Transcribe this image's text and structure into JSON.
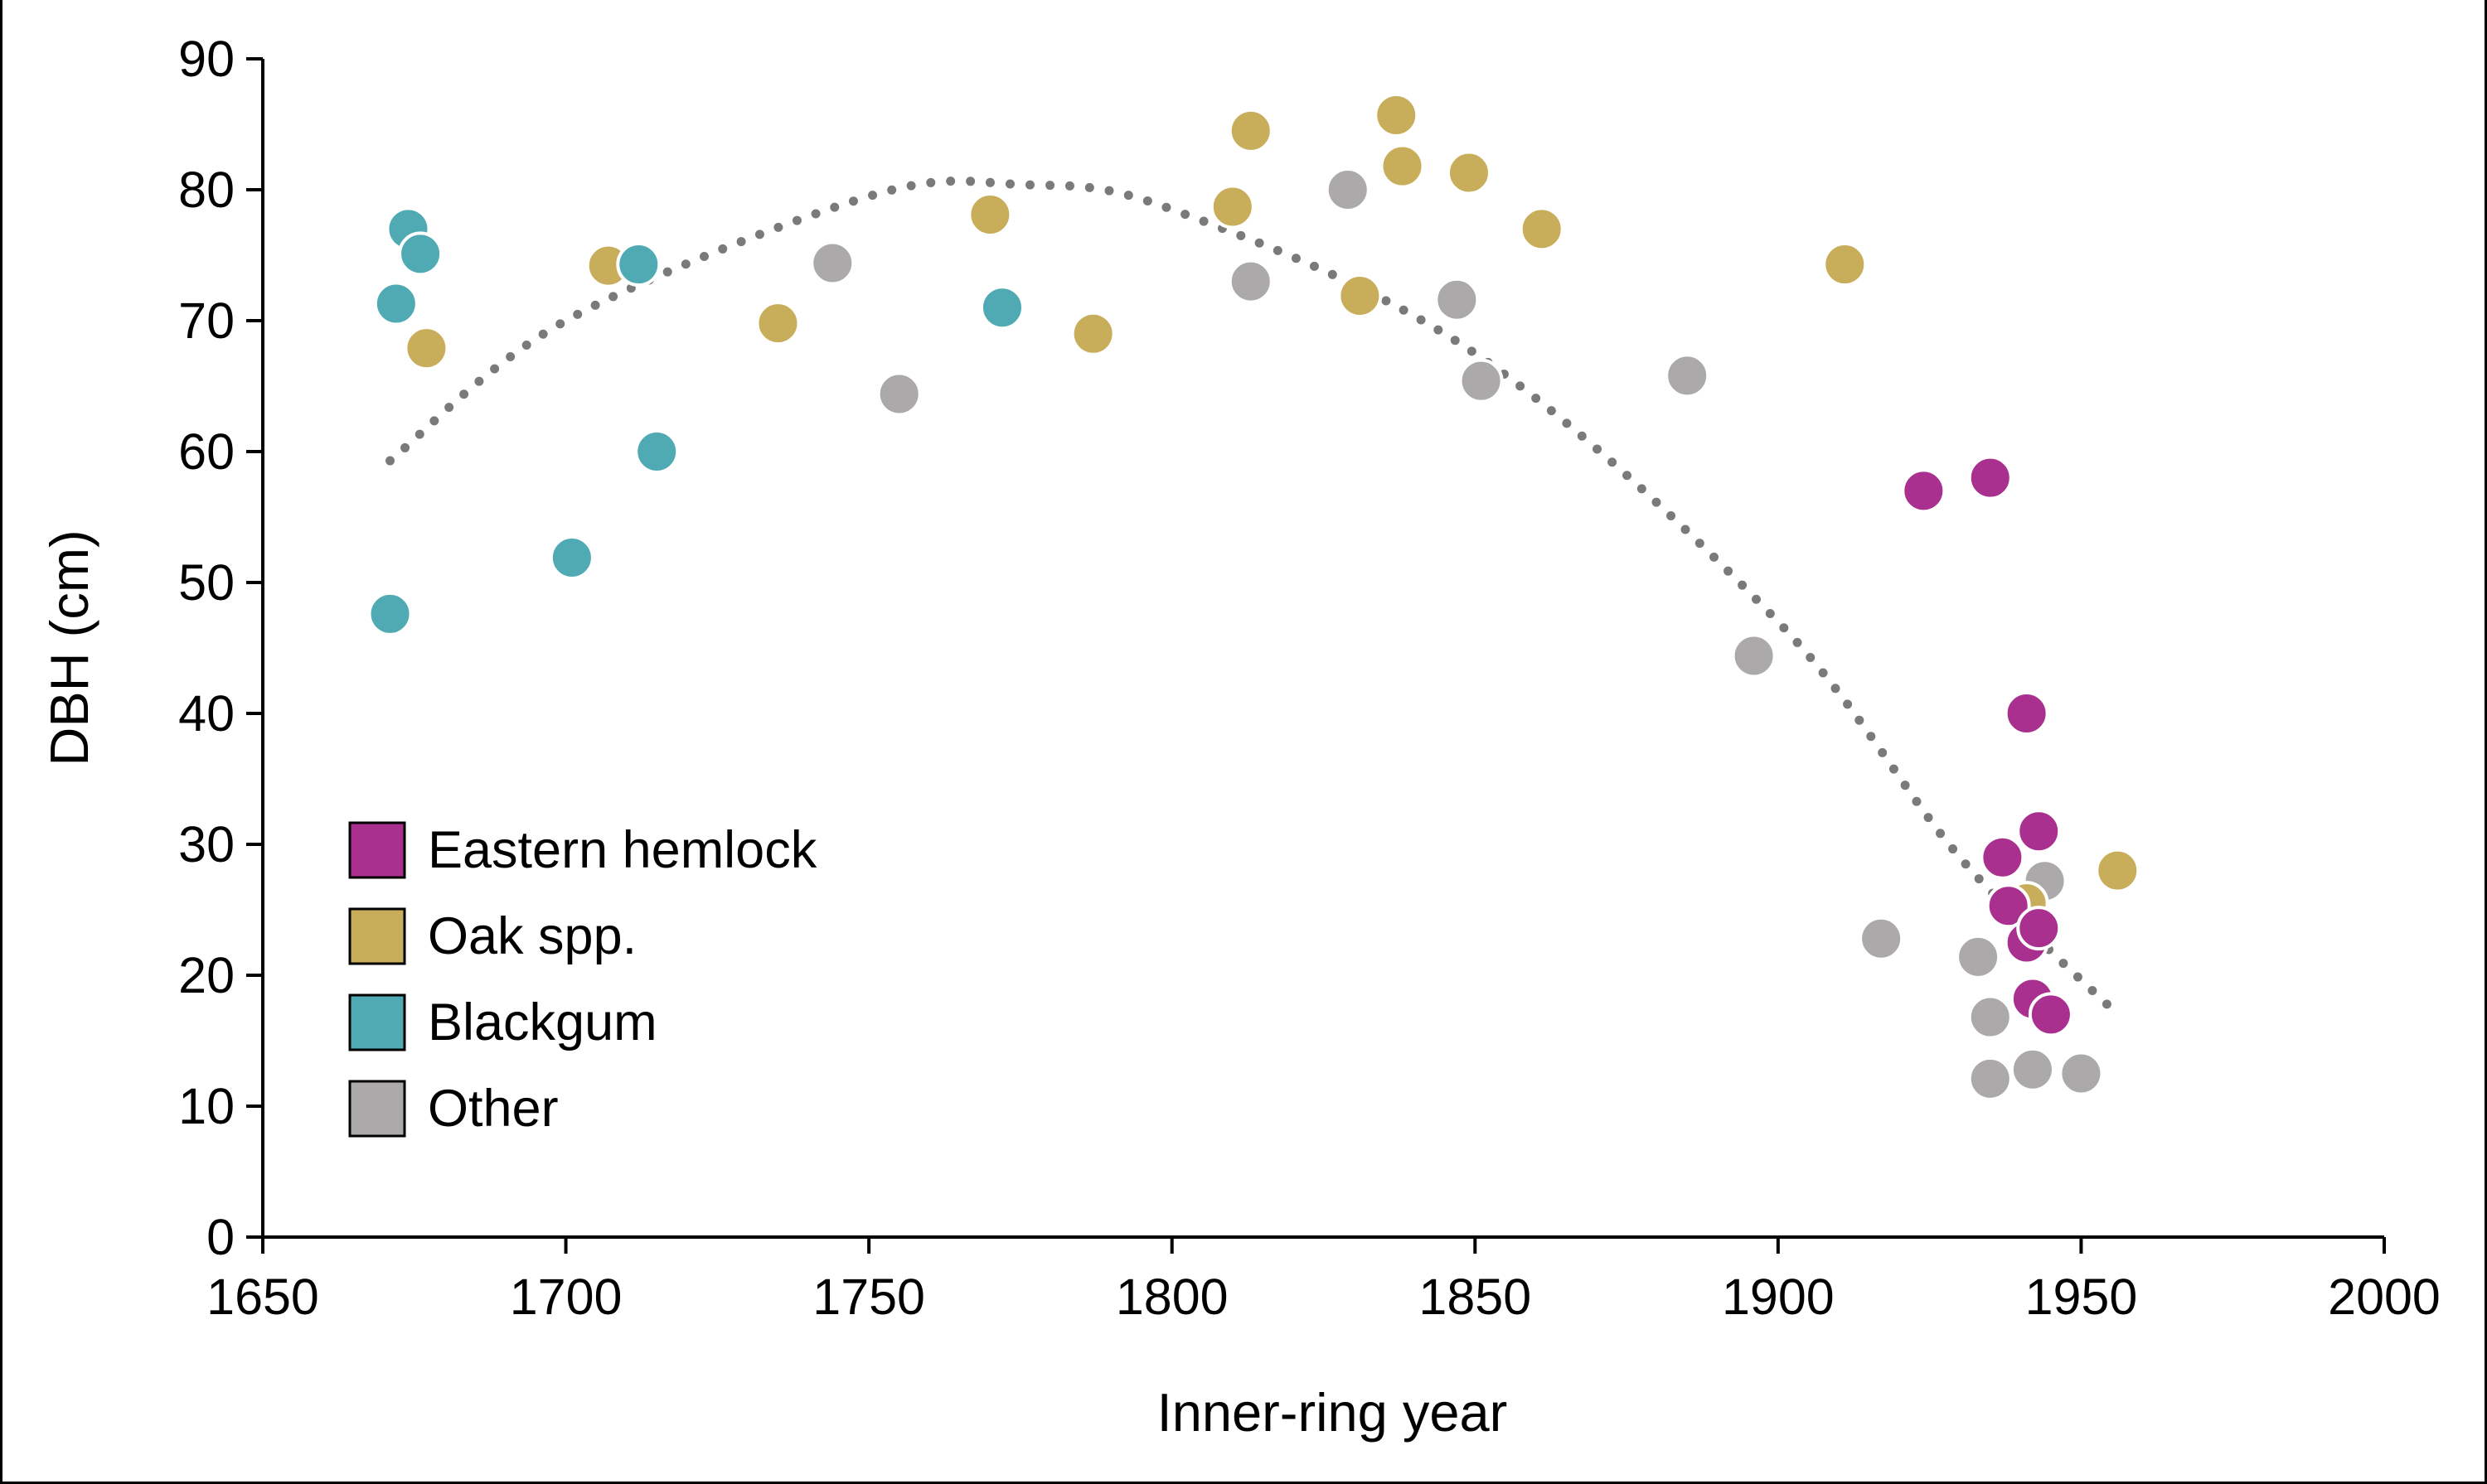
{
  "chart_data": {
    "type": "scatter",
    "title": "",
    "xlabel": "Inner-ring year",
    "ylabel": "DBH (cm)",
    "xlim": [
      1650,
      2000
    ],
    "ylim": [
      0,
      90
    ],
    "x_ticks": [
      1650,
      1700,
      1750,
      1800,
      1850,
      1900,
      1950,
      2000
    ],
    "y_ticks": [
      0,
      10,
      20,
      30,
      40,
      50,
      60,
      70,
      80,
      90
    ],
    "grid": false,
    "legend_position": "lower-left",
    "series": [
      {
        "name": "Eastern hemlock",
        "color": "#A9308F",
        "points": [
          [
            1924,
            57
          ],
          [
            1935,
            58
          ],
          [
            1941,
            40
          ],
          [
            1943,
            31
          ],
          [
            1937,
            29
          ],
          [
            1938,
            25.3
          ],
          [
            1941,
            22.5
          ],
          [
            1943,
            23.6
          ],
          [
            1942,
            18.2
          ],
          [
            1945,
            17
          ]
        ]
      },
      {
        "name": "Oak spp.",
        "color": "#C8AE5A",
        "points": [
          [
            1707,
            74.2
          ],
          [
            1677,
            67.9
          ],
          [
            1735,
            69.8
          ],
          [
            1770,
            78.1
          ],
          [
            1787,
            69
          ],
          [
            1810,
            78.7
          ],
          [
            1813,
            84.5
          ],
          [
            1831,
            71.9
          ],
          [
            1837,
            85.7
          ],
          [
            1838,
            81.8
          ],
          [
            1849,
            81.3
          ],
          [
            1861,
            77
          ],
          [
            1911,
            74.3
          ],
          [
            1956,
            28
          ],
          [
            1941,
            25.5
          ]
        ]
      },
      {
        "name": "Blackgum",
        "color": "#4FAAB4",
        "points": [
          [
            1674,
            77
          ],
          [
            1676,
            75.1
          ],
          [
            1672,
            71.3
          ],
          [
            1712,
            74.3
          ],
          [
            1772,
            71
          ],
          [
            1715,
            60
          ],
          [
            1701,
            51.9
          ],
          [
            1671,
            47.6
          ]
        ]
      },
      {
        "name": "Other",
        "color": "#ABA9A9",
        "points": [
          [
            1744,
            74.4
          ],
          [
            1755,
            64.4
          ],
          [
            1813,
            73
          ],
          [
            1829,
            80
          ],
          [
            1847,
            71.6
          ],
          [
            1851,
            65.4
          ],
          [
            1885,
            65.8
          ],
          [
            1896,
            44.4
          ],
          [
            1917,
            22.8
          ],
          [
            1933,
            21.4
          ],
          [
            1935,
            16.8
          ],
          [
            1935,
            12.1
          ],
          [
            1942,
            12.8
          ],
          [
            1950,
            12.5
          ],
          [
            1944,
            27.2
          ]
        ]
      }
    ],
    "trendline": {
      "style": "dotted",
      "color": "#7A7A7A",
      "fit": "quadratic",
      "x_range": [
        1671,
        1956
      ],
      "points": [
        [
          1671,
          59.3
        ],
        [
          1700,
          70
        ],
        [
          1750,
          79.5
        ],
        [
          1775,
          80.4
        ],
        [
          1800,
          78.5
        ],
        [
          1850,
          67.5
        ],
        [
          1900,
          47
        ],
        [
          1930,
          29
        ],
        [
          1956,
          17
        ]
      ]
    }
  }
}
